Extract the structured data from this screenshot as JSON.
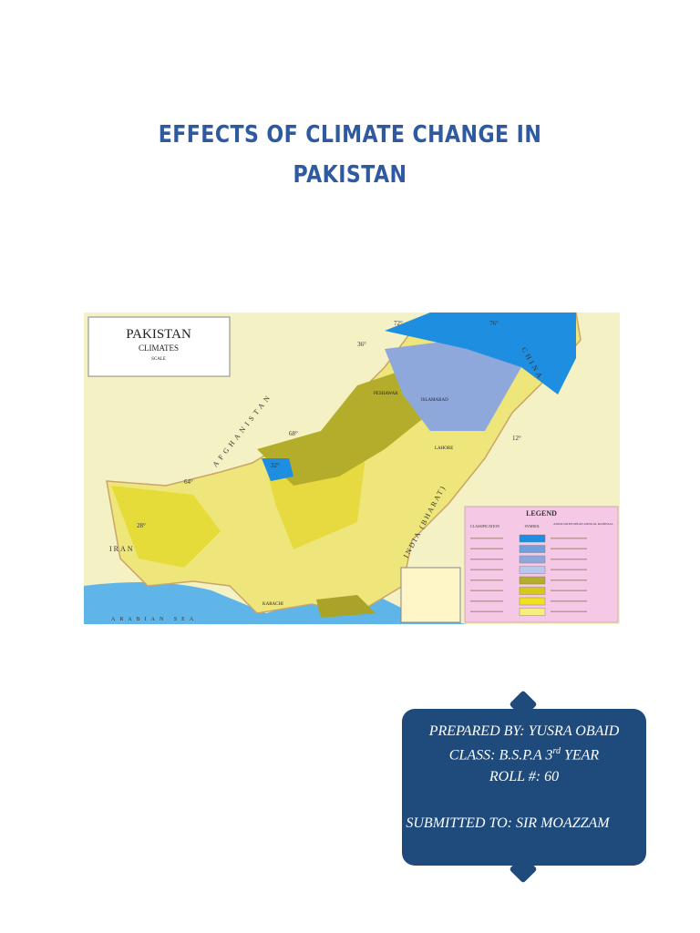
{
  "header": {
    "title_line_1": "EFFECTS OF CLIMATE CHANGE IN",
    "title_line_2": "PAKISTAN"
  },
  "map": {
    "title": "PAKISTAN",
    "subtitle": "CLIMATES",
    "scale": "SCALE",
    "legend": {
      "title": "LEGEND",
      "headers": [
        "CLASSIFICATION",
        "SYMBOL",
        "ASSOCIATED MEAN ANNUAL RAINFALL"
      ]
    },
    "labels": {
      "china": "CHINA",
      "afghanistan": "AFGHANISTAN",
      "iran": "IRAN",
      "india": "INDIA (BHARAT)",
      "sea": "ARABIAN SEA",
      "islamabad": "ISLAMABAD",
      "lahore": "LAHORE",
      "karachi": "KARACHI",
      "peshawar": "PESHAWAR"
    },
    "degrees": [
      "36°",
      "72°",
      "76°",
      "68°",
      "32°",
      "28°",
      "64°",
      "12°"
    ]
  },
  "info": {
    "prepared_by": "PREPARED BY: YUSRA OBAID",
    "class_text": "CLASS: B.S.P.A 3",
    "class_sup": "rd",
    "class_end": " YEAR",
    "roll": "ROLL #: 60",
    "submitted_to": "SUBMITTED TO: SIR MOAZZAM"
  }
}
